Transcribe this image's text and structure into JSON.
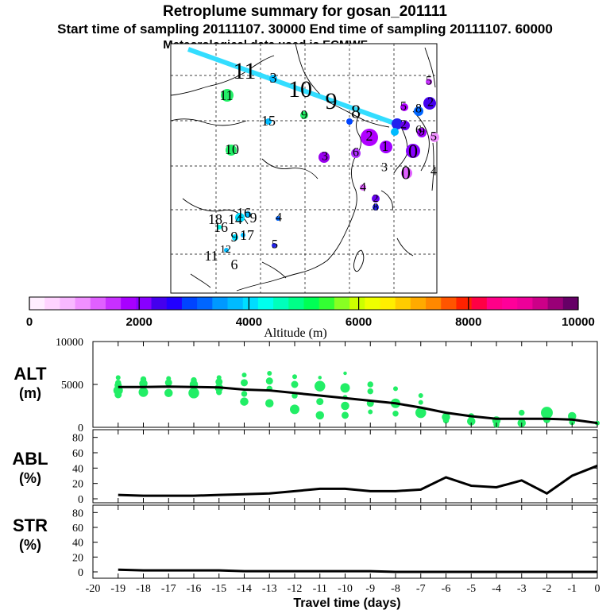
{
  "header": {
    "title": "Retroplume summary for gosan_201111",
    "line2": "Start time of sampling 20111107. 30000     End time of sampling 20111107. 60000",
    "line3": "Meteorological data used is ECMWF"
  },
  "colorbar": {
    "tick_labels": [
      "0",
      "2000",
      "4000",
      "6000",
      "8000",
      "10000"
    ],
    "xlabel": "Altitude (m)",
    "range": [
      0,
      10000
    ],
    "colors": [
      "#ffeeff",
      "#ffd4ff",
      "#f8b8ff",
      "#f090ff",
      "#e060ff",
      "#c830ff",
      "#a800ff",
      "#8800ff",
      "#4400ee",
      "#2200ff",
      "#0044ff",
      "#0066ff",
      "#0099ff",
      "#00bbff",
      "#00ddff",
      "#00ffee",
      "#00ffbb",
      "#00ff88",
      "#00ff55",
      "#33ff33",
      "#88ff22",
      "#ccff00",
      "#eeff00",
      "#ffee00",
      "#ffcc00",
      "#ffaa00",
      "#ff8800",
      "#ff5500",
      "#ff2200",
      "#ff0044",
      "#ff0088",
      "#ff0099",
      "#ee0099",
      "#cc0088",
      "#990077",
      "#660066"
    ]
  },
  "map": {
    "numbers": [
      {
        "t": "11",
        "x": 308,
        "y": 92,
        "s": 30,
        "c": "#000000"
      },
      {
        "t": "10",
        "x": 378,
        "y": 115,
        "s": 30,
        "c": "#000000"
      },
      {
        "t": "9",
        "x": 417,
        "y": 130,
        "s": 30,
        "c": "#000000"
      },
      {
        "t": "8",
        "x": 448,
        "y": 143,
        "s": 24,
        "c": "#000000"
      },
      {
        "t": "3",
        "x": 344,
        "y": 100,
        "s": 18,
        "c": "#000000"
      },
      {
        "t": "11",
        "x": 285,
        "y": 122,
        "s": 18,
        "c": "#000000"
      },
      {
        "t": "15",
        "x": 338,
        "y": 154,
        "s": 18,
        "c": "#000000"
      },
      {
        "t": "9",
        "x": 383,
        "y": 146,
        "s": 16,
        "c": "#000000"
      },
      {
        "t": "10",
        "x": 292,
        "y": 190,
        "s": 18,
        "c": "#000000"
      },
      {
        "t": "2",
        "x": 465,
        "y": 173,
        "s": 18,
        "c": "#000000"
      },
      {
        "t": "1",
        "x": 485,
        "y": 186,
        "s": 18,
        "c": "#000000"
      },
      {
        "t": "3",
        "x": 409,
        "y": 198,
        "s": 16,
        "c": "#000000"
      },
      {
        "t": "6",
        "x": 448,
        "y": 193,
        "s": 16,
        "c": "#000000"
      },
      {
        "t": "3",
        "x": 484,
        "y": 212,
        "s": 16,
        "c": "#000000"
      },
      {
        "t": "0",
        "x": 511,
        "y": 220,
        "s": 24,
        "c": "#000000"
      },
      {
        "t": "0",
        "x": 520,
        "y": 193,
        "s": 24,
        "c": "#000000"
      },
      {
        "t": "6",
        "x": 527,
        "y": 165,
        "s": 16,
        "c": "#000000"
      },
      {
        "t": "2",
        "x": 508,
        "y": 158,
        "s": 16,
        "c": "#000000"
      },
      {
        "t": "5",
        "x": 508,
        "y": 135,
        "s": 16,
        "c": "#000000"
      },
      {
        "t": "8",
        "x": 527,
        "y": 138,
        "s": 16,
        "c": "#000000"
      },
      {
        "t": "2",
        "x": 542,
        "y": 130,
        "s": 16,
        "c": "#000000"
      },
      {
        "t": "5",
        "x": 540,
        "y": 103,
        "s": 16,
        "c": "#000000"
      },
      {
        "t": "9",
        "x": 531,
        "y": 167,
        "s": 16,
        "c": "#000000"
      },
      {
        "t": "5",
        "x": 546,
        "y": 173,
        "s": 16,
        "c": "#000000"
      },
      {
        "t": "4",
        "x": 546,
        "y": 217,
        "s": 16,
        "c": "#000000"
      },
      {
        "t": "4",
        "x": 457,
        "y": 237,
        "s": 16,
        "c": "#000000"
      },
      {
        "t": "2",
        "x": 473,
        "y": 251,
        "s": 14,
        "c": "#000000"
      },
      {
        "t": "8",
        "x": 473,
        "y": 262,
        "s": 14,
        "c": "#000000"
      },
      {
        "t": "4",
        "x": 351,
        "y": 275,
        "s": 16,
        "c": "#000000"
      },
      {
        "t": "5",
        "x": 346,
        "y": 309,
        "s": 16,
        "c": "#000000"
      },
      {
        "t": "18",
        "x": 271,
        "y": 278,
        "s": 18,
        "c": "#000000"
      },
      {
        "t": "14",
        "x": 296,
        "y": 278,
        "s": 18,
        "c": "#000000"
      },
      {
        "t": "16",
        "x": 307,
        "y": 270,
        "s": 18,
        "c": "#000000"
      },
      {
        "t": "9",
        "x": 319,
        "y": 276,
        "s": 18,
        "c": "#000000"
      },
      {
        "t": "16",
        "x": 278,
        "y": 288,
        "s": 18,
        "c": "#000000"
      },
      {
        "t": "17",
        "x": 311,
        "y": 298,
        "s": 18,
        "c": "#000000"
      },
      {
        "t": "9",
        "x": 295,
        "y": 300,
        "s": 18,
        "c": "#000000"
      },
      {
        "t": "12",
        "x": 284,
        "y": 315,
        "s": 14,
        "c": "#000000"
      },
      {
        "t": "11",
        "x": 266,
        "y": 324,
        "s": 18,
        "c": "#000000"
      },
      {
        "t": "6",
        "x": 295,
        "y": 335,
        "s": 18,
        "c": "#000000"
      }
    ]
  },
  "chart_data": [
    {
      "type": "scatter",
      "title": "ALT (m)",
      "label_top": "ALT",
      "label_bottom": "(m)",
      "xlabel": "Travel time (days)",
      "ylabel": "ALT (m)",
      "x_ticks": [
        "-20",
        "-19",
        "-18",
        "-17",
        "-16",
        "-15",
        "-14",
        "-13",
        "-12",
        "-11",
        "-10",
        "-9",
        "-8",
        "-7",
        "-6",
        "-5",
        "-4",
        "-3",
        "-2",
        "-1",
        "0"
      ],
      "xlim": [
        -20,
        0
      ],
      "ylim": [
        0,
        10000
      ],
      "y_ticks": [
        "0",
        "5000",
        "10000"
      ],
      "line": {
        "x": [
          -19,
          -18,
          -17,
          -16,
          -15,
          -14,
          -13,
          -12,
          -11,
          -10,
          -9,
          -8,
          -7,
          -6,
          -5,
          -4,
          -3,
          -2,
          -1,
          0
        ],
        "y": [
          4700,
          4700,
          4750,
          4700,
          4650,
          4400,
          4300,
          4000,
          3700,
          3400,
          3100,
          2800,
          2300,
          1700,
          1300,
          1000,
          1000,
          1000,
          900,
          500
        ]
      },
      "points": [
        [
          -19,
          5800,
          4
        ],
        [
          -19,
          5200,
          5
        ],
        [
          -19,
          4900,
          6
        ],
        [
          -19,
          4300,
          8
        ],
        [
          -19,
          3800,
          6
        ],
        [
          -18,
          5600,
          5
        ],
        [
          -18,
          5100,
          7
        ],
        [
          -18,
          4100,
          8
        ],
        [
          -17,
          5700,
          4
        ],
        [
          -17,
          5200,
          6
        ],
        [
          -17,
          4000,
          7
        ],
        [
          -16,
          5500,
          5
        ],
        [
          -16,
          5000,
          7
        ],
        [
          -16,
          4000,
          9
        ],
        [
          -15,
          5800,
          4
        ],
        [
          -15,
          5300,
          6
        ],
        [
          -15,
          4600,
          7
        ],
        [
          -15,
          4100,
          5
        ],
        [
          -14,
          6100,
          4
        ],
        [
          -14,
          5200,
          6
        ],
        [
          -14,
          3900,
          5
        ],
        [
          -14,
          3000,
          7
        ],
        [
          -13,
          6300,
          4
        ],
        [
          -13,
          5400,
          6
        ],
        [
          -13,
          4500,
          5
        ],
        [
          -13,
          2800,
          7
        ],
        [
          -12,
          5900,
          4
        ],
        [
          -12,
          5000,
          6
        ],
        [
          -12,
          3700,
          5
        ],
        [
          -12,
          2100,
          8
        ],
        [
          -11,
          5800,
          3
        ],
        [
          -11,
          4800,
          9
        ],
        [
          -11,
          3000,
          6
        ],
        [
          -11,
          1400,
          7
        ],
        [
          -10,
          6300,
          3
        ],
        [
          -10,
          4600,
          8
        ],
        [
          -10,
          3500,
          4
        ],
        [
          -10,
          2500,
          7
        ],
        [
          -10,
          1400,
          6
        ],
        [
          -9,
          5000,
          5
        ],
        [
          -9,
          4200,
          5
        ],
        [
          -9,
          2800,
          6
        ],
        [
          -9,
          1800,
          4
        ],
        [
          -8,
          4500,
          4
        ],
        [
          -8,
          2800,
          8
        ],
        [
          -8,
          1600,
          5
        ],
        [
          -7,
          3700,
          4
        ],
        [
          -7,
          2900,
          4
        ],
        [
          -7,
          1700,
          9
        ],
        [
          -6,
          1200,
          7
        ],
        [
          -6,
          800,
          5
        ],
        [
          -5,
          1300,
          5
        ],
        [
          -5,
          700,
          7
        ],
        [
          -4,
          800,
          7
        ],
        [
          -4,
          300,
          5
        ],
        [
          -3,
          1700,
          5
        ],
        [
          -3,
          500,
          7
        ],
        [
          -2,
          1700,
          10
        ],
        [
          -2,
          900,
          6
        ],
        [
          -1,
          1300,
          7
        ],
        [
          -1,
          600,
          5
        ],
        [
          0,
          500,
          4
        ]
      ]
    },
    {
      "type": "line",
      "title": "ABL (%)",
      "label_top": "ABL",
      "label_bottom": "(%)",
      "xlabel": "Travel time (days)",
      "ylim": [
        0,
        90
      ],
      "y_ticks": [
        "0",
        "20",
        "40",
        "60",
        "80"
      ],
      "x": [
        -19,
        -18,
        -17,
        -16,
        -15,
        -14,
        -13,
        -12,
        -11,
        -10,
        -9,
        -8,
        -7,
        -6,
        -5,
        -4,
        -3,
        -2,
        -1,
        0
      ],
      "values": [
        5,
        4,
        4,
        4,
        5,
        6,
        7,
        10,
        13,
        13,
        10,
        10,
        12,
        28,
        17,
        15,
        24,
        7,
        30,
        43
      ]
    },
    {
      "type": "line",
      "title": "STR (%)",
      "label_top": "STR",
      "label_bottom": "(%)",
      "xlabel": "Travel time (days)",
      "ylim": [
        0,
        90
      ],
      "y_ticks": [
        "0",
        "20",
        "40",
        "60",
        "80"
      ],
      "x": [
        -19,
        -18,
        -17,
        -16,
        -15,
        -14,
        -13,
        -12,
        -11,
        -10,
        -9,
        -8,
        -7,
        -6,
        -5,
        -4,
        -3,
        -2,
        -1,
        0
      ],
      "values": [
        3,
        2,
        2,
        2,
        2,
        1,
        1,
        1,
        1,
        1,
        1,
        0,
        0,
        0,
        0,
        0,
        0,
        0,
        0,
        0
      ]
    }
  ],
  "colors": {
    "scatter_point": "#22ee66",
    "line": "#000000",
    "trajectory": "#33ddff"
  }
}
